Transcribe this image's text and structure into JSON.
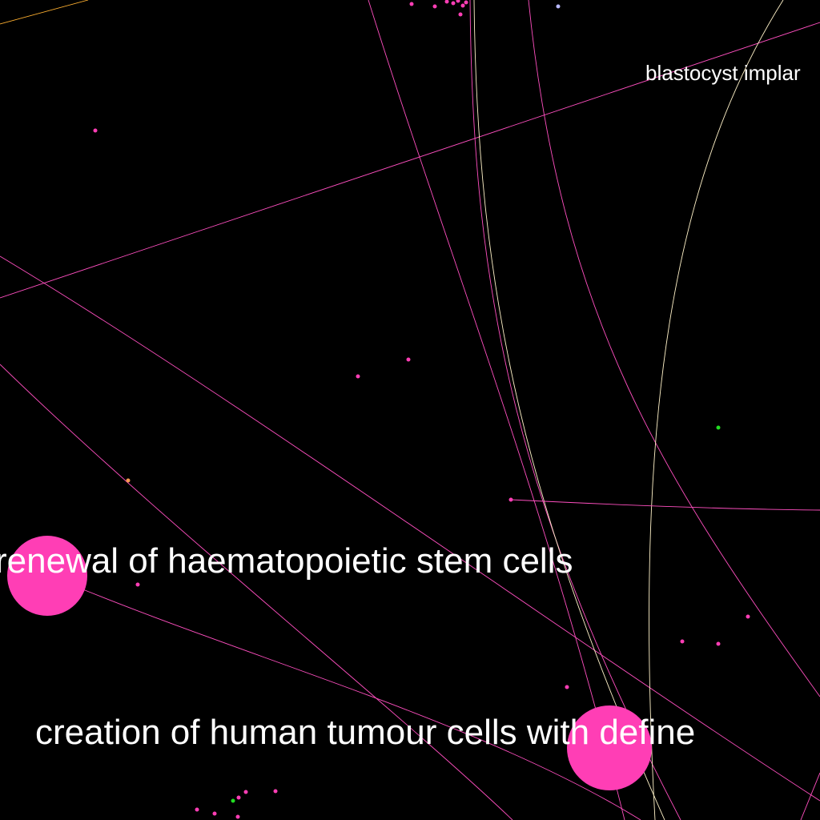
{
  "background_color": "#000000",
  "labels": {
    "blastocyst": "blastocyst implar",
    "haematopoietic": "renewal of haematopoietic stem cells",
    "tumour": "creation of human tumour cells with define"
  },
  "colors": {
    "magenta": "#ff3eb5",
    "pink_edge": "#ff4fc0",
    "pale_edge": "#fff2c8",
    "green": "#22dd22",
    "orange": "#ff9a50",
    "lavender": "#b8b8ff",
    "amber_edge": "#ffb030"
  }
}
